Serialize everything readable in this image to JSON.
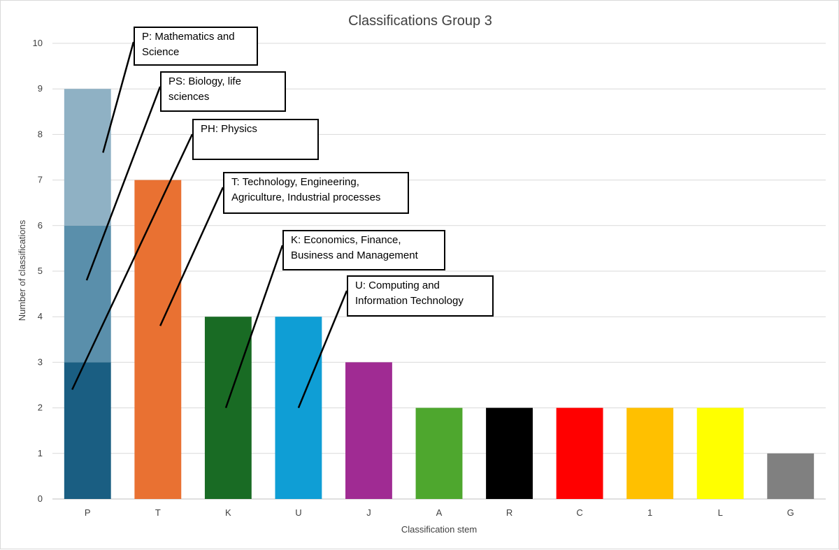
{
  "chart_data": {
    "type": "bar",
    "title": "Classifications Group 3",
    "xlabel": "Classification stem",
    "ylabel": "Number of classifications",
    "ylim": [
      0,
      10
    ],
    "yticks": [
      0,
      1,
      2,
      3,
      4,
      5,
      6,
      7,
      8,
      9,
      10
    ],
    "grid": true,
    "categories": [
      "P",
      "T",
      "K",
      "U",
      "J",
      "A",
      "R",
      "C",
      "1",
      "L",
      "G"
    ],
    "values": [
      9,
      7,
      4,
      4,
      3,
      2,
      2,
      2,
      2,
      2,
      1
    ],
    "colors": [
      "#1a5e82",
      "#e97132",
      "#196b24",
      "#0f9ed5",
      "#a02b93",
      "#4ea72e",
      "#000000",
      "#ff0000",
      "#ffc000",
      "#ffff00",
      "#808080"
    ],
    "stacked_segments": {
      "P": [
        {
          "label": "PH",
          "value": 3,
          "color": "#1a5e82"
        },
        {
          "label": "PS",
          "value": 3,
          "color": "#5a8fab"
        },
        {
          "label": "P",
          "value": 3,
          "color": "#8fb1c4"
        }
      ]
    },
    "annotations": [
      {
        "id": "p",
        "text": "P: Mathematics and Science",
        "points_to": {
          "category": "P",
          "y": 7.6
        }
      },
      {
        "id": "ps",
        "text": "PS: Biology, life sciences",
        "points_to": {
          "category": "P",
          "y": 4.8
        }
      },
      {
        "id": "ph",
        "text": "PH: Physics",
        "points_to": {
          "category": "P",
          "y": 2.4
        }
      },
      {
        "id": "t",
        "text": "T: Technology, Engineering, Agriculture, Industrial processes",
        "points_to": {
          "category": "T",
          "y": 3.8
        }
      },
      {
        "id": "k",
        "text": "K: Economics, Finance, Business and Management",
        "points_to": {
          "category": "K",
          "y": 2.0
        }
      },
      {
        "id": "u",
        "text": "U: Computing and Information Technology",
        "points_to": {
          "category": "U",
          "y": 2.0
        }
      }
    ]
  }
}
